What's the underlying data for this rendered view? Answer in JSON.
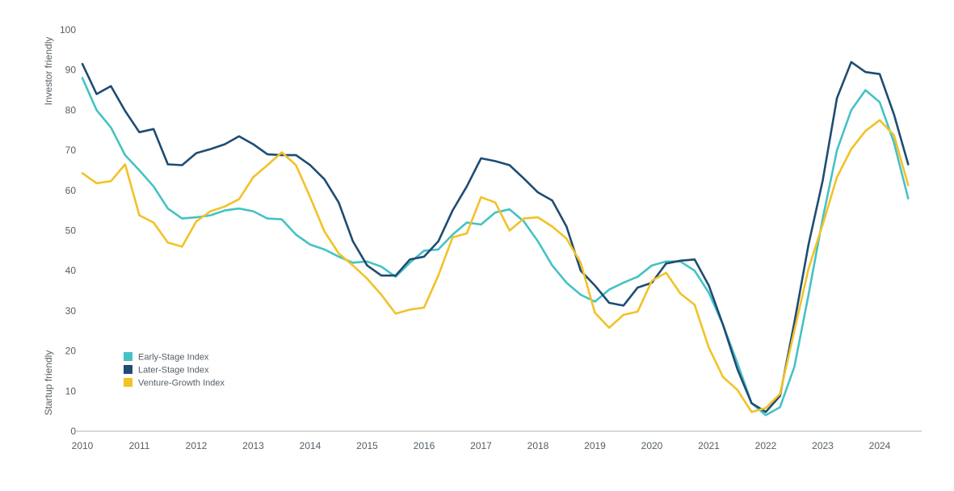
{
  "chart_data": {
    "type": "line",
    "title": "",
    "xlabel": "",
    "ylabel": "",
    "side_labels": {
      "top": "Investor friendly",
      "bottom": "Startup friendly"
    },
    "xlim": [
      2010,
      2025
    ],
    "ylim": [
      0,
      100
    ],
    "x_ticks": [
      2010,
      2011,
      2012,
      2013,
      2014,
      2015,
      2016,
      2017,
      2018,
      2019,
      2020,
      2021,
      2022,
      2023,
      2024
    ],
    "y_ticks": [
      0,
      10,
      20,
      30,
      40,
      50,
      60,
      70,
      80,
      90,
      100
    ],
    "grid": false,
    "legend_position": "bottom-left",
    "series": [
      {
        "name": "Early-Stage Index",
        "color": "#45c2c4",
        "points": [
          [
            2010.0,
            88.0
          ],
          [
            2010.25,
            80.0
          ],
          [
            2010.5,
            75.7
          ],
          [
            2010.75,
            68.8
          ],
          [
            2011.0,
            65.0
          ],
          [
            2011.25,
            61.0
          ],
          [
            2011.5,
            55.5
          ],
          [
            2011.75,
            53.0
          ],
          [
            2012.0,
            53.3
          ],
          [
            2012.25,
            53.8
          ],
          [
            2012.5,
            55.0
          ],
          [
            2012.75,
            55.5
          ],
          [
            2013.0,
            54.8
          ],
          [
            2013.25,
            53.0
          ],
          [
            2013.5,
            52.8
          ],
          [
            2013.75,
            49.0
          ],
          [
            2014.0,
            46.5
          ],
          [
            2014.25,
            45.3
          ],
          [
            2014.5,
            43.5
          ],
          [
            2014.75,
            42.0
          ],
          [
            2015.0,
            42.3
          ],
          [
            2015.25,
            41.0
          ],
          [
            2015.5,
            38.5
          ],
          [
            2015.75,
            42.0
          ],
          [
            2016.0,
            45.0
          ],
          [
            2016.25,
            45.3
          ],
          [
            2016.5,
            49.0
          ],
          [
            2016.75,
            52.0
          ],
          [
            2017.0,
            51.5
          ],
          [
            2017.25,
            54.5
          ],
          [
            2017.5,
            55.3
          ],
          [
            2017.75,
            52.3
          ],
          [
            2018.0,
            47.3
          ],
          [
            2018.25,
            41.3
          ],
          [
            2018.5,
            37.0
          ],
          [
            2018.75,
            34.0
          ],
          [
            2019.0,
            32.3
          ],
          [
            2019.25,
            35.3
          ],
          [
            2019.5,
            37.0
          ],
          [
            2019.75,
            38.5
          ],
          [
            2020.0,
            41.3
          ],
          [
            2020.25,
            42.3
          ],
          [
            2020.5,
            42.3
          ],
          [
            2020.75,
            40.0
          ],
          [
            2021.0,
            34.5
          ],
          [
            2021.25,
            26.5
          ],
          [
            2021.5,
            17.0
          ],
          [
            2021.75,
            7.0
          ],
          [
            2022.0,
            4.0
          ],
          [
            2022.25,
            6.0
          ],
          [
            2022.5,
            16.0
          ],
          [
            2022.75,
            34.0
          ],
          [
            2023.0,
            53.0
          ],
          [
            2023.25,
            70.0
          ],
          [
            2023.5,
            80.0
          ],
          [
            2023.75,
            85.0
          ],
          [
            2024.0,
            82.0
          ],
          [
            2024.25,
            72.0
          ],
          [
            2024.5,
            58.0
          ]
        ]
      },
      {
        "name": "Later-Stage Index",
        "color": "#1f4c73",
        "points": [
          [
            2010.0,
            91.5
          ],
          [
            2010.25,
            84.0
          ],
          [
            2010.5,
            86.0
          ],
          [
            2010.75,
            79.8
          ],
          [
            2011.0,
            74.5
          ],
          [
            2011.25,
            75.3
          ],
          [
            2011.5,
            66.5
          ],
          [
            2011.75,
            66.3
          ],
          [
            2012.0,
            69.3
          ],
          [
            2012.25,
            70.3
          ],
          [
            2012.5,
            71.5
          ],
          [
            2012.75,
            73.5
          ],
          [
            2013.0,
            71.5
          ],
          [
            2013.25,
            69.0
          ],
          [
            2013.5,
            68.8
          ],
          [
            2013.75,
            68.8
          ],
          [
            2014.0,
            66.3
          ],
          [
            2014.25,
            62.8
          ],
          [
            2014.5,
            57.0
          ],
          [
            2014.75,
            47.3
          ],
          [
            2015.0,
            41.3
          ],
          [
            2015.25,
            38.8
          ],
          [
            2015.5,
            38.8
          ],
          [
            2015.75,
            42.8
          ],
          [
            2016.0,
            43.5
          ],
          [
            2016.25,
            47.3
          ],
          [
            2016.5,
            55.0
          ],
          [
            2016.75,
            61.0
          ],
          [
            2017.0,
            68.0
          ],
          [
            2017.25,
            67.3
          ],
          [
            2017.5,
            66.3
          ],
          [
            2017.75,
            63.0
          ],
          [
            2018.0,
            59.5
          ],
          [
            2018.25,
            57.5
          ],
          [
            2018.5,
            51.0
          ],
          [
            2018.75,
            40.0
          ],
          [
            2019.0,
            36.3
          ],
          [
            2019.25,
            32.0
          ],
          [
            2019.5,
            31.3
          ],
          [
            2019.75,
            35.8
          ],
          [
            2020.0,
            37.0
          ],
          [
            2020.25,
            41.8
          ],
          [
            2020.5,
            42.5
          ],
          [
            2020.75,
            42.8
          ],
          [
            2021.0,
            36.3
          ],
          [
            2021.25,
            26.5
          ],
          [
            2021.5,
            15.5
          ],
          [
            2021.75,
            7.0
          ],
          [
            2022.0,
            4.8
          ],
          [
            2022.25,
            8.8
          ],
          [
            2022.5,
            27.0
          ],
          [
            2022.75,
            46.5
          ],
          [
            2023.0,
            62.5
          ],
          [
            2023.25,
            83.0
          ],
          [
            2023.5,
            92.0
          ],
          [
            2023.75,
            89.5
          ],
          [
            2024.0,
            89.0
          ],
          [
            2024.25,
            79.0
          ],
          [
            2024.5,
            66.5
          ]
        ]
      },
      {
        "name": "Venture-Growth Index",
        "color": "#f2c227",
        "points": [
          [
            2010.0,
            64.3
          ],
          [
            2010.25,
            61.8
          ],
          [
            2010.5,
            62.3
          ],
          [
            2010.75,
            66.5
          ],
          [
            2011.0,
            53.8
          ],
          [
            2011.25,
            52.0
          ],
          [
            2011.5,
            47.0
          ],
          [
            2011.75,
            46.0
          ],
          [
            2012.0,
            52.3
          ],
          [
            2012.25,
            54.8
          ],
          [
            2012.5,
            56.0
          ],
          [
            2012.75,
            57.8
          ],
          [
            2013.0,
            63.3
          ],
          [
            2013.25,
            66.3
          ],
          [
            2013.5,
            69.5
          ],
          [
            2013.75,
            66.3
          ],
          [
            2014.0,
            58.3
          ],
          [
            2014.25,
            49.8
          ],
          [
            2014.5,
            44.3
          ],
          [
            2014.75,
            41.3
          ],
          [
            2015.0,
            38.0
          ],
          [
            2015.25,
            34.0
          ],
          [
            2015.5,
            29.3
          ],
          [
            2015.75,
            30.3
          ],
          [
            2016.0,
            30.8
          ],
          [
            2016.25,
            38.8
          ],
          [
            2016.5,
            48.3
          ],
          [
            2016.75,
            49.3
          ],
          [
            2017.0,
            58.3
          ],
          [
            2017.25,
            57.0
          ],
          [
            2017.5,
            50.0
          ],
          [
            2017.75,
            53.0
          ],
          [
            2018.0,
            53.3
          ],
          [
            2018.25,
            51.0
          ],
          [
            2018.5,
            48.0
          ],
          [
            2018.75,
            42.0
          ],
          [
            2019.0,
            29.5
          ],
          [
            2019.25,
            25.8
          ],
          [
            2019.5,
            29.0
          ],
          [
            2019.75,
            29.8
          ],
          [
            2020.0,
            37.5
          ],
          [
            2020.25,
            39.5
          ],
          [
            2020.5,
            34.3
          ],
          [
            2020.75,
            31.5
          ],
          [
            2021.0,
            20.8
          ],
          [
            2021.25,
            13.5
          ],
          [
            2021.5,
            10.3
          ],
          [
            2021.75,
            4.8
          ],
          [
            2022.0,
            5.8
          ],
          [
            2022.25,
            9.3
          ],
          [
            2022.5,
            25.0
          ],
          [
            2022.75,
            40.5
          ],
          [
            2023.0,
            51.5
          ],
          [
            2023.25,
            63.3
          ],
          [
            2023.5,
            70.3
          ],
          [
            2023.75,
            74.8
          ],
          [
            2024.0,
            77.5
          ],
          [
            2024.25,
            73.8
          ],
          [
            2024.5,
            61.3
          ]
        ]
      }
    ]
  }
}
